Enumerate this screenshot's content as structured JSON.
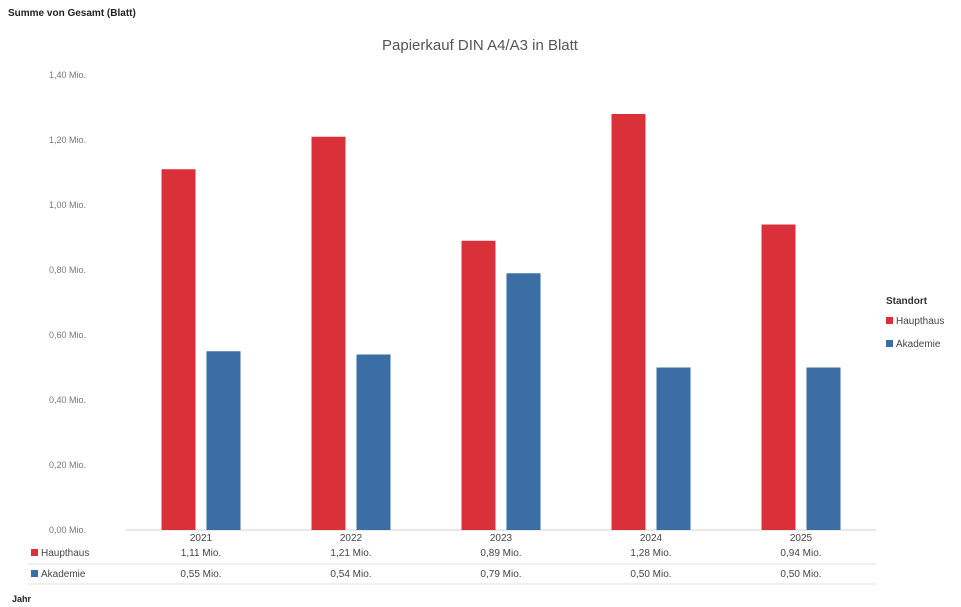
{
  "field_label": "Summe von Gesamt (Blatt)",
  "axis_field_label": "Jahr",
  "chart_data": {
    "type": "bar",
    "title": "Papierkauf DIN A4/A3 in Blatt",
    "categories": [
      "2021",
      "2022",
      "2023",
      "2024",
      "2025"
    ],
    "series": [
      {
        "name": "Haupthaus",
        "color": "#d9303a",
        "values": [
          1.11,
          1.21,
          0.89,
          1.28,
          0.94
        ],
        "labels": [
          "1,11 Mio.",
          "1,21 Mio.",
          "0,89 Mio.",
          "1,28 Mio.",
          "0,94 Mio."
        ]
      },
      {
        "name": "Akademie",
        "color": "#3a6ea5",
        "values": [
          0.55,
          0.54,
          0.79,
          0.5,
          0.5
        ],
        "labels": [
          "0,55 Mio.",
          "0,54 Mio.",
          "0,79 Mio.",
          "0,50 Mio.",
          "0,50 Mio."
        ]
      }
    ],
    "ylim": [
      0,
      1.4
    ],
    "y_ticks": [
      0,
      0.2,
      0.4,
      0.6,
      0.8,
      1.0,
      1.2,
      1.4
    ],
    "y_tick_labels": [
      "0,00 Mio.",
      "0,20 Mio.",
      "0,40 Mio.",
      "0,60 Mio.",
      "0,80 Mio.",
      "1,00 Mio.",
      "1,20 Mio.",
      "1,40 Mio."
    ],
    "legend": {
      "title": "Standort",
      "position": "right"
    },
    "grid": false,
    "data_table": true
  }
}
